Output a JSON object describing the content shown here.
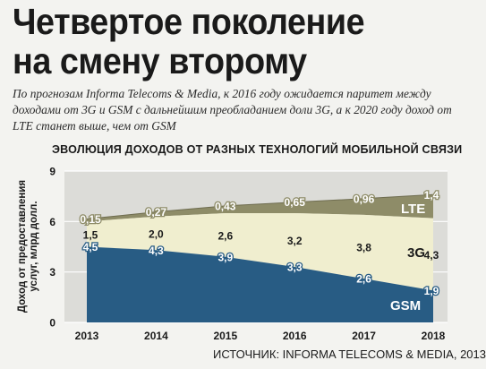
{
  "headline": {
    "line1": "Четвертое поколение",
    "line2": "на смену второму"
  },
  "subtitle": "По прогнозам Informa Telecoms & Media, к 2016 году ожидается паритет между доходами от 3G и GSM с дальнейшим преобладанием доли 3G, а к 2020 году доход от LTE станет выше, чем от GSM",
  "source": "ИСТОЧНИК: INFORMA TELECOMS & MEDIA, 2013",
  "colors": {
    "gsm": "#285c84",
    "g3": "#f0eecf",
    "lte": "#8e8c68",
    "background": "#f3f3f0",
    "plot_background": "#dcdcd8"
  },
  "chart_data": {
    "type": "area",
    "stacked": true,
    "title": "ЭВОЛЮЦИЯ ДОХОДОВ ОТ РАЗНЫХ ТЕХНОЛОГИЙ МОБИЛЬНОЙ СВЯЗИ",
    "ylabel": "Доход от предоставления услуг, млрд долл.",
    "xlabel": "",
    "x": [
      "2013",
      "2014",
      "2015",
      "2016",
      "2017",
      "2018"
    ],
    "ylim": [
      0,
      9
    ],
    "yticks": [
      "0",
      "3",
      "6",
      "9"
    ],
    "grid": true,
    "series": [
      {
        "name": "GSM",
        "values": [
          4.5,
          4.3,
          3.9,
          3.3,
          2.6,
          1.9
        ],
        "labels": [
          "4,5",
          "4,3",
          "3,9",
          "3,3",
          "2,6",
          "1,9"
        ],
        "color": "#285c84"
      },
      {
        "name": "3G",
        "values": [
          1.5,
          2.0,
          2.6,
          3.2,
          3.8,
          4.3
        ],
        "labels": [
          "1,5",
          "2,0",
          "2,6",
          "3,2",
          "3,8",
          "4,3"
        ],
        "color": "#f0eecf"
      },
      {
        "name": "LTE",
        "values": [
          0.15,
          0.27,
          0.43,
          0.65,
          0.96,
          1.4
        ],
        "labels": [
          "0,15",
          "0,27",
          "0,43",
          "0,65",
          "0,96",
          "1,4"
        ],
        "color": "#8e8c68"
      }
    ]
  }
}
